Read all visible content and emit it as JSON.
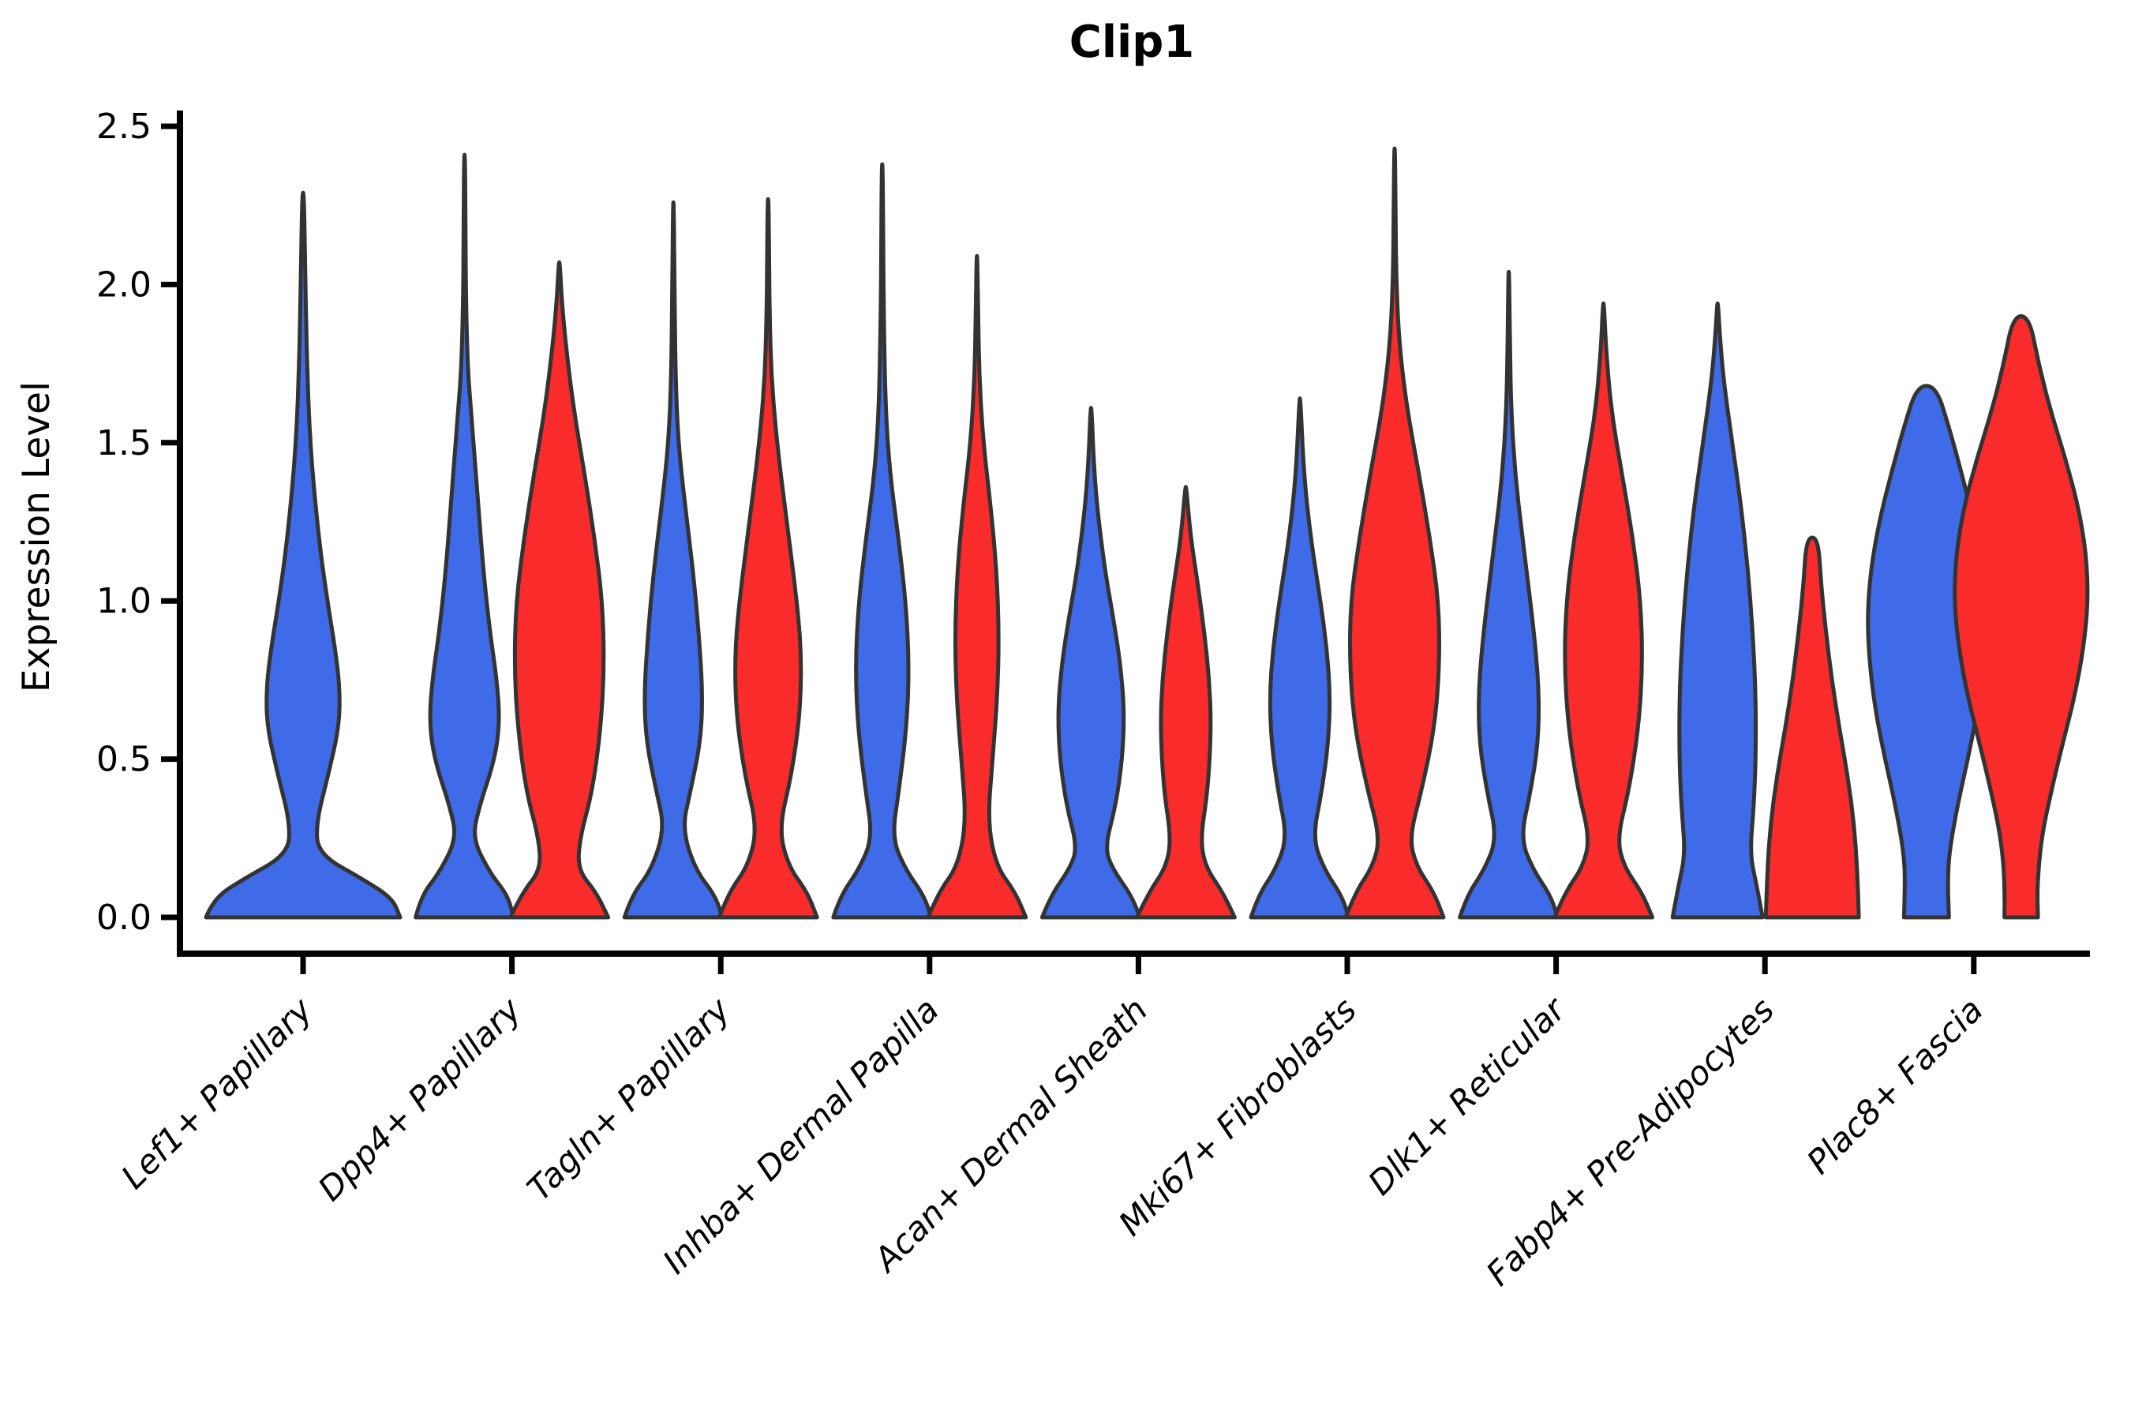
{
  "chart_data": {
    "type": "violin",
    "title": "Clip1",
    "ylabel": "Expression Level",
    "ylim": [
      0,
      2.5
    ],
    "yticks": [
      {
        "value": 0.0,
        "label": "0.0"
      },
      {
        "value": 0.5,
        "label": "0.5"
      },
      {
        "value": 1.0,
        "label": "1.0"
      },
      {
        "value": 1.5,
        "label": "1.5"
      },
      {
        "value": 2.0,
        "label": "2.0"
      },
      {
        "value": 2.5,
        "label": "2.5"
      }
    ],
    "categories": [
      "Lef1+ Papillary",
      "Dpp4+ Papillary",
      "Tagln+ Papillary",
      "Inhba+ Dermal Papilla",
      "Acan+ Dermal Sheath",
      "Mki67+ Fibroblasts",
      "Dlk1+ Reticular",
      "Fabp4+ Pre-Adipocytes",
      "Plac8+ Fascia"
    ],
    "series_colors": {
      "blue": "#3F6BE8",
      "red": "#F92B2B"
    },
    "outline_color": "#333333",
    "grid": false,
    "legend": "none",
    "violins": [
      {
        "category": 0,
        "series": "blue",
        "offset": 0,
        "halfwidth": 123,
        "max_value": 2.29,
        "profile": [
          [
            0,
            1.0
          ],
          [
            0.06,
            0.92
          ],
          [
            0.12,
            0.62
          ],
          [
            0.2,
            0.155
          ],
          [
            0.3,
            0.135
          ],
          [
            0.45,
            0.26
          ],
          [
            0.6,
            0.37
          ],
          [
            0.72,
            0.38
          ],
          [
            0.85,
            0.33
          ],
          [
            1.0,
            0.25
          ],
          [
            1.2,
            0.16
          ],
          [
            1.5,
            0.07
          ],
          [
            1.8,
            0.035
          ],
          [
            2.1,
            0.02
          ],
          [
            2.29,
            0.008
          ]
        ]
      },
      {
        "category": 1,
        "series": "blue",
        "offset": -60,
        "halfwidth": 62,
        "max_value": 2.41,
        "profile": [
          [
            0,
            1.0
          ],
          [
            0.07,
            0.88
          ],
          [
            0.14,
            0.52
          ],
          [
            0.25,
            0.16
          ],
          [
            0.35,
            0.3
          ],
          [
            0.5,
            0.62
          ],
          [
            0.62,
            0.72
          ],
          [
            0.75,
            0.66
          ],
          [
            0.9,
            0.52
          ],
          [
            1.1,
            0.38
          ],
          [
            1.35,
            0.26
          ],
          [
            1.6,
            0.13
          ],
          [
            1.75,
            0.06
          ],
          [
            2.0,
            0.025
          ],
          [
            2.2,
            0.02
          ],
          [
            2.41,
            0.008
          ]
        ]
      },
      {
        "category": 1,
        "series": "red",
        "offset": 60,
        "halfwidth": 62,
        "max_value": 2.07,
        "profile": [
          [
            0,
            1.0
          ],
          [
            0.08,
            0.75
          ],
          [
            0.15,
            0.38
          ],
          [
            0.25,
            0.42
          ],
          [
            0.4,
            0.68
          ],
          [
            0.6,
            0.85
          ],
          [
            0.8,
            0.92
          ],
          [
            1.0,
            0.88
          ],
          [
            1.2,
            0.72
          ],
          [
            1.4,
            0.52
          ],
          [
            1.6,
            0.3
          ],
          [
            1.8,
            0.14
          ],
          [
            1.95,
            0.05
          ],
          [
            2.07,
            0.01
          ]
        ]
      },
      {
        "category": 2,
        "series": "blue",
        "offset": -60,
        "halfwidth": 62,
        "max_value": 2.26,
        "profile": [
          [
            0,
            1.0
          ],
          [
            0.07,
            0.85
          ],
          [
            0.15,
            0.45
          ],
          [
            0.28,
            0.18
          ],
          [
            0.4,
            0.35
          ],
          [
            0.55,
            0.55
          ],
          [
            0.7,
            0.6
          ],
          [
            0.9,
            0.52
          ],
          [
            1.1,
            0.4
          ],
          [
            1.3,
            0.24
          ],
          [
            1.5,
            0.1
          ],
          [
            1.7,
            0.045
          ],
          [
            1.95,
            0.025
          ],
          [
            2.26,
            0.008
          ]
        ]
      },
      {
        "category": 2,
        "series": "red",
        "offset": 60,
        "halfwidth": 62,
        "max_value": 2.27,
        "profile": [
          [
            0,
            1.0
          ],
          [
            0.08,
            0.8
          ],
          [
            0.16,
            0.42
          ],
          [
            0.28,
            0.22
          ],
          [
            0.45,
            0.48
          ],
          [
            0.65,
            0.66
          ],
          [
            0.85,
            0.68
          ],
          [
            1.05,
            0.55
          ],
          [
            1.25,
            0.38
          ],
          [
            1.5,
            0.18
          ],
          [
            1.7,
            0.07
          ],
          [
            1.9,
            0.03
          ],
          [
            2.1,
            0.02
          ],
          [
            2.27,
            0.008
          ]
        ]
      },
      {
        "category": 3,
        "series": "blue",
        "offset": -60,
        "halfwidth": 62,
        "max_value": 2.38,
        "profile": [
          [
            0,
            1.0
          ],
          [
            0.07,
            0.85
          ],
          [
            0.15,
            0.48
          ],
          [
            0.25,
            0.2
          ],
          [
            0.4,
            0.34
          ],
          [
            0.6,
            0.5
          ],
          [
            0.8,
            0.55
          ],
          [
            1.0,
            0.48
          ],
          [
            1.2,
            0.33
          ],
          [
            1.4,
            0.16
          ],
          [
            1.6,
            0.07
          ],
          [
            1.9,
            0.03
          ],
          [
            2.15,
            0.02
          ],
          [
            2.38,
            0.008
          ]
        ]
      },
      {
        "category": 3,
        "series": "red",
        "offset": 60,
        "halfwidth": 62,
        "max_value": 2.09,
        "profile": [
          [
            0,
            1.0
          ],
          [
            0.08,
            0.78
          ],
          [
            0.16,
            0.4
          ],
          [
            0.3,
            0.22
          ],
          [
            0.5,
            0.32
          ],
          [
            0.7,
            0.42
          ],
          [
            0.9,
            0.45
          ],
          [
            1.1,
            0.4
          ],
          [
            1.3,
            0.28
          ],
          [
            1.5,
            0.13
          ],
          [
            1.7,
            0.05
          ],
          [
            1.9,
            0.025
          ],
          [
            2.09,
            0.008
          ]
        ]
      },
      {
        "category": 4,
        "series": "blue",
        "offset": -60,
        "halfwidth": 62,
        "max_value": 1.61,
        "profile": [
          [
            0,
            1.0
          ],
          [
            0.07,
            0.82
          ],
          [
            0.15,
            0.45
          ],
          [
            0.22,
            0.28
          ],
          [
            0.35,
            0.5
          ],
          [
            0.5,
            0.64
          ],
          [
            0.65,
            0.68
          ],
          [
            0.8,
            0.6
          ],
          [
            0.95,
            0.45
          ],
          [
            1.1,
            0.28
          ],
          [
            1.3,
            0.12
          ],
          [
            1.45,
            0.05
          ],
          [
            1.61,
            0.01
          ]
        ]
      },
      {
        "category": 4,
        "series": "red",
        "offset": 60,
        "halfwidth": 62,
        "max_value": 1.36,
        "profile": [
          [
            0,
            1.0
          ],
          [
            0.08,
            0.75
          ],
          [
            0.16,
            0.4
          ],
          [
            0.25,
            0.3
          ],
          [
            0.4,
            0.45
          ],
          [
            0.6,
            0.52
          ],
          [
            0.75,
            0.48
          ],
          [
            0.9,
            0.38
          ],
          [
            1.05,
            0.25
          ],
          [
            1.2,
            0.1
          ],
          [
            1.36,
            0.01
          ]
        ]
      },
      {
        "category": 5,
        "series": "blue",
        "offset": -60,
        "halfwidth": 62,
        "max_value": 1.64,
        "profile": [
          [
            0,
            1.0
          ],
          [
            0.07,
            0.85
          ],
          [
            0.15,
            0.5
          ],
          [
            0.25,
            0.26
          ],
          [
            0.4,
            0.45
          ],
          [
            0.55,
            0.58
          ],
          [
            0.7,
            0.62
          ],
          [
            0.85,
            0.55
          ],
          [
            1.0,
            0.42
          ],
          [
            1.2,
            0.22
          ],
          [
            1.4,
            0.08
          ],
          [
            1.64,
            0.01
          ]
        ]
      },
      {
        "category": 5,
        "series": "red",
        "offset": 60,
        "halfwidth": 62,
        "max_value": 2.43,
        "profile": [
          [
            0,
            1.0
          ],
          [
            0.08,
            0.8
          ],
          [
            0.16,
            0.45
          ],
          [
            0.25,
            0.3
          ],
          [
            0.4,
            0.55
          ],
          [
            0.6,
            0.82
          ],
          [
            0.8,
            0.92
          ],
          [
            1.0,
            0.9
          ],
          [
            1.2,
            0.72
          ],
          [
            1.4,
            0.5
          ],
          [
            1.6,
            0.26
          ],
          [
            1.8,
            0.1
          ],
          [
            2.0,
            0.035
          ],
          [
            2.2,
            0.02
          ],
          [
            2.43,
            0.008
          ]
        ]
      },
      {
        "category": 6,
        "series": "blue",
        "offset": -60,
        "halfwidth": 62,
        "max_value": 2.04,
        "profile": [
          [
            0,
            1.0
          ],
          [
            0.07,
            0.85
          ],
          [
            0.15,
            0.5
          ],
          [
            0.25,
            0.24
          ],
          [
            0.4,
            0.45
          ],
          [
            0.55,
            0.6
          ],
          [
            0.7,
            0.62
          ],
          [
            0.85,
            0.55
          ],
          [
            1.0,
            0.44
          ],
          [
            1.2,
            0.28
          ],
          [
            1.4,
            0.13
          ],
          [
            1.6,
            0.05
          ],
          [
            1.8,
            0.025
          ],
          [
            2.04,
            0.008
          ]
        ]
      },
      {
        "category": 6,
        "series": "red",
        "offset": 60,
        "halfwidth": 62,
        "max_value": 1.94,
        "profile": [
          [
            0,
            1.0
          ],
          [
            0.08,
            0.78
          ],
          [
            0.16,
            0.42
          ],
          [
            0.25,
            0.28
          ],
          [
            0.4,
            0.52
          ],
          [
            0.6,
            0.72
          ],
          [
            0.8,
            0.8
          ],
          [
            1.0,
            0.76
          ],
          [
            1.2,
            0.6
          ],
          [
            1.4,
            0.38
          ],
          [
            1.6,
            0.16
          ],
          [
            1.8,
            0.05
          ],
          [
            1.94,
            0.01
          ]
        ]
      },
      {
        "category": 7,
        "series": "blue",
        "offset": -60,
        "halfwidth": 62,
        "max_value": 1.94,
        "profile": [
          [
            0,
            0.92
          ],
          [
            0.1,
            0.8
          ],
          [
            0.2,
            0.66
          ],
          [
            0.35,
            0.74
          ],
          [
            0.5,
            0.78
          ],
          [
            0.7,
            0.78
          ],
          [
            0.9,
            0.72
          ],
          [
            1.1,
            0.62
          ],
          [
            1.3,
            0.48
          ],
          [
            1.5,
            0.3
          ],
          [
            1.7,
            0.12
          ],
          [
            1.85,
            0.04
          ],
          [
            1.94,
            0.01
          ]
        ]
      },
      {
        "category": 7,
        "series": "red",
        "offset": 60,
        "halfwidth": 62,
        "max_value": 1.2,
        "profile": [
          [
            0,
            0.95
          ],
          [
            0.15,
            0.92
          ],
          [
            0.3,
            0.85
          ],
          [
            0.45,
            0.72
          ],
          [
            0.6,
            0.55
          ],
          [
            0.75,
            0.4
          ],
          [
            0.9,
            0.28
          ],
          [
            1.05,
            0.18
          ],
          [
            1.2,
            0.12
          ]
        ]
      },
      {
        "category": 8,
        "series": "blue",
        "offset": -60,
        "halfwidth": 75,
        "max_value": 1.68,
        "profile": [
          [
            0,
            0.38
          ],
          [
            0.1,
            0.36
          ],
          [
            0.2,
            0.38
          ],
          [
            0.35,
            0.52
          ],
          [
            0.5,
            0.7
          ],
          [
            0.65,
            0.86
          ],
          [
            0.8,
            0.96
          ],
          [
            0.95,
            1.0
          ],
          [
            1.1,
            0.94
          ],
          [
            1.25,
            0.8
          ],
          [
            1.4,
            0.6
          ],
          [
            1.55,
            0.38
          ],
          [
            1.68,
            0.16
          ]
        ]
      },
      {
        "category": 8,
        "series": "red",
        "offset": 60,
        "halfwidth": 85,
        "max_value": 1.9,
        "profile": [
          [
            0,
            0.25
          ],
          [
            0.1,
            0.24
          ],
          [
            0.25,
            0.3
          ],
          [
            0.4,
            0.45
          ],
          [
            0.55,
            0.62
          ],
          [
            0.7,
            0.8
          ],
          [
            0.85,
            0.93
          ],
          [
            1.0,
            1.0
          ],
          [
            1.15,
            0.97
          ],
          [
            1.3,
            0.85
          ],
          [
            1.45,
            0.66
          ],
          [
            1.6,
            0.44
          ],
          [
            1.75,
            0.26
          ],
          [
            1.9,
            0.12
          ]
        ]
      }
    ]
  }
}
